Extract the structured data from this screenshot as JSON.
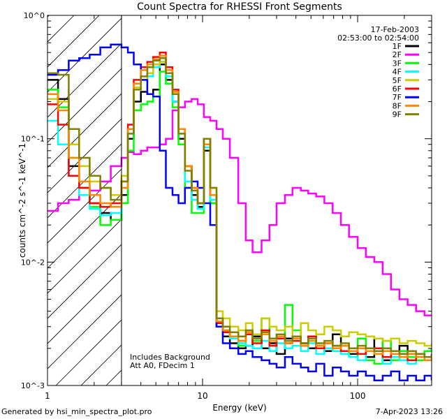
{
  "chart_data": {
    "type": "line",
    "title": "Count Spectra for RHESSI Front Segments",
    "xlabel": "Energy (keV)",
    "ylabel": "counts cm^-2 s^-1 keV^-1",
    "xscale": "log",
    "yscale": "log",
    "xlim": [
      1,
      300
    ],
    "ylim": [
      0.001,
      1
    ],
    "x_ticks": [
      {
        "value": 1,
        "label": "1"
      },
      {
        "value": 10,
        "label": "10"
      },
      {
        "value": 100,
        "label": "100"
      }
    ],
    "y_ticks": [
      {
        "value": 1,
        "label": "10^0"
      },
      {
        "value": 0.1,
        "label": "10^-1"
      },
      {
        "value": 0.01,
        "label": "10^-2"
      },
      {
        "value": 0.001,
        "label": "10^-3"
      }
    ],
    "grid": false,
    "legend_position": "top-right",
    "date_line": "17-Feb-2003",
    "time_range": "02:53:00 to 02:54:00",
    "notes": [
      "Includes Background",
      "Att A0, FDecim 1"
    ],
    "shaded_region_below_keV": 3,
    "x": [
      1.0,
      1.17,
      1.37,
      1.6,
      1.87,
      2.19,
      2.56,
      3.0,
      3.3,
      3.6,
      4.0,
      4.4,
      4.8,
      5.3,
      5.8,
      6.4,
      7.0,
      7.7,
      8.5,
      9.3,
      10.2,
      11.2,
      12.3,
      13.5,
      15,
      17,
      19,
      21,
      24,
      27,
      30,
      34,
      38,
      43,
      48,
      54,
      61,
      69,
      78,
      88,
      100,
      113,
      128,
      145,
      164,
      186,
      210,
      238,
      270,
      300
    ],
    "series": [
      {
        "name": "1F",
        "color": "#000000",
        "values": [
          0.3,
          0.21,
          0.06,
          0.04,
          0.03,
          0.025,
          0.022,
          0.035,
          0.1,
          0.2,
          0.24,
          0.23,
          0.25,
          0.4,
          0.3,
          0.2,
          0.1,
          0.06,
          0.035,
          0.028,
          0.08,
          0.03,
          0.003,
          0.0025,
          0.0022,
          0.002,
          0.0021,
          0.0025,
          0.002,
          0.0022,
          0.0018,
          0.0024,
          0.0025,
          0.0022,
          0.002,
          0.0021,
          0.0019,
          0.0026,
          0.0021,
          0.0018,
          0.002,
          0.0017,
          0.0024,
          0.0016,
          0.0019,
          0.0021,
          0.0018,
          0.0017,
          0.0019,
          0.002
        ]
      },
      {
        "name": "2F",
        "color": "#ff00ff",
        "values": [
          0.026,
          0.03,
          0.032,
          0.035,
          0.038,
          0.045,
          0.06,
          0.07,
          0.078,
          0.075,
          0.08,
          0.085,
          0.085,
          0.09,
          0.1,
          0.17,
          0.18,
          0.2,
          0.21,
          0.19,
          0.15,
          0.14,
          0.12,
          0.1,
          0.07,
          0.03,
          0.015,
          0.012,
          0.015,
          0.02,
          0.03,
          0.035,
          0.04,
          0.038,
          0.036,
          0.034,
          0.03,
          0.025,
          0.02,
          0.016,
          0.013,
          0.011,
          0.01,
          0.008,
          0.006,
          0.005,
          0.0045,
          0.004,
          0.0037,
          0.0037
        ]
      },
      {
        "name": "3F",
        "color": "#00ff00",
        "values": [
          0.25,
          0.18,
          0.07,
          0.04,
          0.028,
          0.02,
          0.022,
          0.03,
          0.08,
          0.17,
          0.19,
          0.2,
          0.22,
          0.35,
          0.28,
          0.18,
          0.09,
          0.04,
          0.025,
          0.025,
          0.09,
          0.03,
          0.003,
          0.0028,
          0.0025,
          0.0021,
          0.0026,
          0.0023,
          0.0035,
          0.0021,
          0.0026,
          0.0045,
          0.0028,
          0.0021,
          0.0025,
          0.0021,
          0.0022,
          0.002,
          0.0021,
          0.0017,
          0.0024,
          0.0016,
          0.0015,
          0.0023,
          0.0016,
          0.0019,
          0.0017,
          0.0016,
          0.0019,
          0.002
        ]
      },
      {
        "name": "4F",
        "color": "#00ffff",
        "values": [
          0.14,
          0.09,
          0.05,
          0.035,
          0.027,
          0.024,
          0.025,
          0.04,
          0.11,
          0.26,
          0.3,
          0.32,
          0.38,
          0.42,
          0.32,
          0.2,
          0.11,
          0.045,
          0.032,
          0.027,
          0.085,
          0.032,
          0.0035,
          0.0028,
          0.0024,
          0.0022,
          0.0021,
          0.002,
          0.0023,
          0.0019,
          0.0022,
          0.002,
          0.0021,
          0.0019,
          0.0022,
          0.0018,
          0.002,
          0.0019,
          0.0018,
          0.0017,
          0.0016,
          0.0019,
          0.0018,
          0.0015,
          0.0017,
          0.0016,
          0.0015,
          0.0018,
          0.0016,
          0.0017
        ]
      },
      {
        "name": "5F",
        "color": "#cccc00",
        "values": [
          0.21,
          0.2,
          0.09,
          0.06,
          0.045,
          0.04,
          0.035,
          0.05,
          0.12,
          0.26,
          0.3,
          0.34,
          0.4,
          0.42,
          0.34,
          0.24,
          0.12,
          0.06,
          0.04,
          0.03,
          0.1,
          0.04,
          0.004,
          0.0035,
          0.003,
          0.0028,
          0.0032,
          0.0026,
          0.0035,
          0.003,
          0.0028,
          0.003,
          0.0025,
          0.0032,
          0.0028,
          0.0026,
          0.003,
          0.0028,
          0.0025,
          0.0027,
          0.0026,
          0.0025,
          0.0024,
          0.0023,
          0.0024,
          0.0022,
          0.0023,
          0.0022,
          0.0021,
          0.0022
        ]
      },
      {
        "name": "6F",
        "color": "#ff0000",
        "values": [
          0.19,
          0.13,
          0.05,
          0.04,
          0.03,
          0.028,
          0.03,
          0.045,
          0.13,
          0.3,
          0.38,
          0.42,
          0.46,
          0.5,
          0.38,
          0.25,
          0.12,
          0.06,
          0.04,
          0.03,
          0.1,
          0.035,
          0.0032,
          0.0027,
          0.0025,
          0.0023,
          0.0026,
          0.0022,
          0.0028,
          0.0021,
          0.0024,
          0.0022,
          0.0023,
          0.0021,
          0.0025,
          0.002,
          0.0022,
          0.0021,
          0.0019,
          0.002,
          0.0018,
          0.0019,
          0.002,
          0.0017,
          0.0019,
          0.0018,
          0.0016,
          0.0018,
          0.0017,
          0.0018
        ]
      },
      {
        "name": "7F",
        "color": "#0000ff",
        "values": [
          0.33,
          0.36,
          0.43,
          0.45,
          0.48,
          0.55,
          0.58,
          0.55,
          0.5,
          0.4,
          0.3,
          0.23,
          0.22,
          0.08,
          0.04,
          0.035,
          0.03,
          0.04,
          0.045,
          0.04,
          0.03,
          0.02,
          0.003,
          0.0022,
          0.002,
          0.0018,
          0.0019,
          0.0017,
          0.0016,
          0.0015,
          0.0014,
          0.0017,
          0.0015,
          0.0014,
          0.0013,
          0.0015,
          0.0012,
          0.0014,
          0.0013,
          0.0012,
          0.0013,
          0.0012,
          0.0011,
          0.0012,
          0.0013,
          0.0011,
          0.0012,
          0.0011,
          0.0012,
          0.0011
        ]
      },
      {
        "name": "8F",
        "color": "#ff8800",
        "values": [
          0.23,
          0.17,
          0.07,
          0.045,
          0.035,
          0.03,
          0.028,
          0.04,
          0.12,
          0.28,
          0.36,
          0.4,
          0.44,
          0.47,
          0.36,
          0.24,
          0.12,
          0.06,
          0.04,
          0.03,
          0.09,
          0.035,
          0.0033,
          0.0028,
          0.0025,
          0.0023,
          0.0027,
          0.0024,
          0.0026,
          0.0023,
          0.0025,
          0.0022,
          0.0024,
          0.0021,
          0.0023,
          0.0021,
          0.0022,
          0.002,
          0.0021,
          0.0019,
          0.002,
          0.0019,
          0.0018,
          0.0019,
          0.0018,
          0.0017,
          0.0018,
          0.0017,
          0.0016,
          0.0017
        ]
      },
      {
        "name": "9F",
        "color": "#808000",
        "values": [
          0.34,
          0.33,
          0.12,
          0.07,
          0.05,
          0.04,
          0.032,
          0.045,
          0.11,
          0.25,
          0.32,
          0.38,
          0.43,
          0.45,
          0.34,
          0.23,
          0.11,
          0.055,
          0.038,
          0.03,
          0.1,
          0.04,
          0.0035,
          0.003,
          0.0027,
          0.0025,
          0.0028,
          0.0024,
          0.0027,
          0.0024,
          0.0026,
          0.0023,
          0.0025,
          0.0022,
          0.0024,
          0.0022,
          0.0023,
          0.0021,
          0.0022,
          0.002,
          0.0021,
          0.002,
          0.0019,
          0.002,
          0.0019,
          0.0018,
          0.0019,
          0.0018,
          0.0017,
          0.0018
        ]
      }
    ]
  },
  "footer": {
    "generator": "Generated by hsi_min_spectra_plot.pro",
    "timestamp": "7-Apr-2023 13:26"
  }
}
